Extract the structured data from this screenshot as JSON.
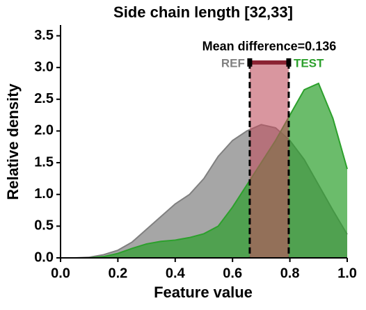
{
  "chart_data": {
    "type": "density",
    "title": "Side chain length [32,33]",
    "x_label": "Feature value",
    "y_label": "Relative density",
    "x": [
      0,
      0.05,
      0.1,
      0.15,
      0.2,
      0.25,
      0.3,
      0.35,
      0.4,
      0.45,
      0.5,
      0.55,
      0.6,
      0.65,
      0.7,
      0.75,
      0.8,
      0.85,
      0.9,
      0.95,
      1.0
    ],
    "series": [
      {
        "name": "REF",
        "color": "#808080",
        "mean": 0.66,
        "values": [
          0,
          0,
          0.01,
          0.05,
          0.12,
          0.25,
          0.45,
          0.65,
          0.85,
          1.0,
          1.25,
          1.6,
          1.85,
          2.0,
          2.1,
          2.05,
          1.85,
          1.55,
          1.15,
          0.75,
          0.37
        ]
      },
      {
        "name": "TEST",
        "color": "#2ca02c",
        "mean": 0.796,
        "values": [
          0,
          0,
          0,
          0.02,
          0.07,
          0.15,
          0.22,
          0.26,
          0.28,
          0.32,
          0.38,
          0.5,
          0.8,
          1.15,
          1.5,
          1.85,
          2.25,
          2.65,
          2.75,
          2.2,
          1.4
        ]
      }
    ],
    "mean_difference_label": "Mean difference=0.136",
    "bracket_y": 3.08,
    "bracket_color": "#8b2232",
    "xlim": [
      0,
      1.0
    ],
    "ylim": [
      0,
      3.67
    ],
    "xticks": [
      {
        "value": 0,
        "label": "0.0"
      },
      {
        "value": 0.2,
        "label": "0.2"
      },
      {
        "value": 0.4,
        "label": "0.4"
      },
      {
        "value": 0.6,
        "label": "0.6"
      },
      {
        "value": 0.8,
        "label": "0.8"
      },
      {
        "value": 1.0,
        "label": "1.0"
      }
    ],
    "yticks": [
      {
        "value": 0,
        "label": "0.0"
      },
      {
        "value": 0.5,
        "label": "0.5"
      },
      {
        "value": 1.0,
        "label": "1.0"
      },
      {
        "value": 1.5,
        "label": "1.5"
      },
      {
        "value": 2.0,
        "label": "2.0"
      },
      {
        "value": 2.5,
        "label": "2.5"
      },
      {
        "value": 3.0,
        "label": "3.0"
      },
      {
        "value": 3.5,
        "label": "3.5"
      }
    ]
  }
}
